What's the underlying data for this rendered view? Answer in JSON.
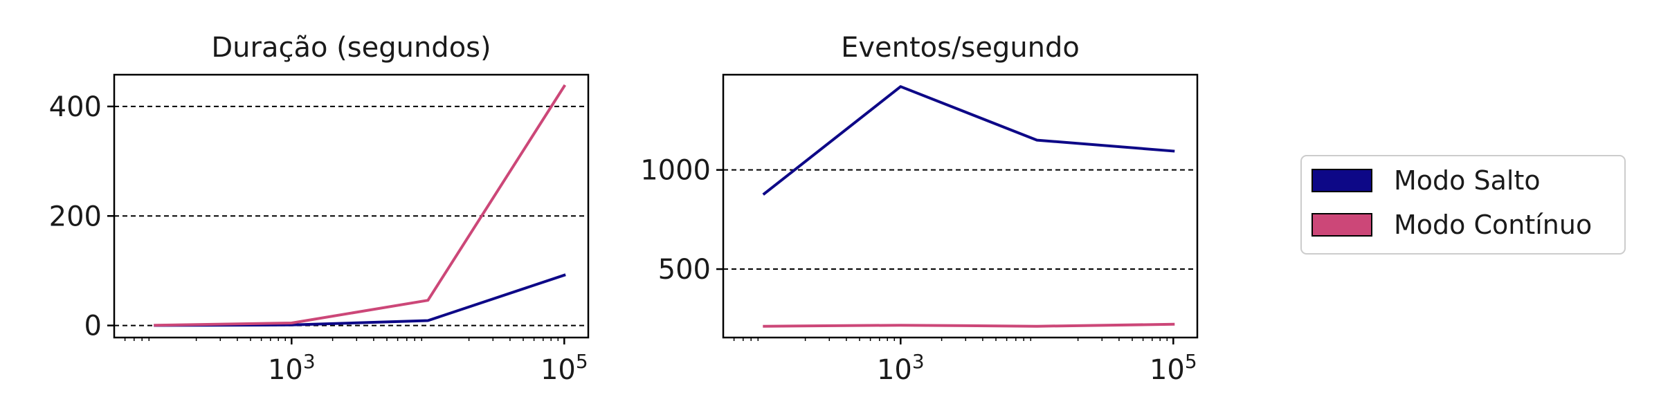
{
  "chart_data": [
    {
      "type": "line",
      "title": "Duração (segundos)",
      "xlabel": "",
      "ylabel": "",
      "x_scale": "log",
      "x": [
        100,
        1000,
        10000,
        100000
      ],
      "xlim": [
        50,
        150000
      ],
      "ylim": [
        -22,
        458
      ],
      "xticks": [
        1000,
        100000
      ],
      "xtick_labels": [
        {
          "base": "10",
          "exp": "3"
        },
        {
          "base": "10",
          "exp": "5"
        }
      ],
      "yticks": [
        0,
        200,
        400
      ],
      "ytick_labels": [
        "0",
        "200",
        "400"
      ],
      "grid": "horizontal-dashed",
      "series": [
        {
          "name": "Modo Salto",
          "color": "#0d0887",
          "values": [
            0.1,
            1,
            9,
            92
          ]
        },
        {
          "name": "Modo Contínuo",
          "color": "#cc4778",
          "values": [
            0.5,
            4.5,
            46,
            437
          ]
        }
      ]
    },
    {
      "type": "line",
      "title": "Eventos/segundo",
      "xlabel": "",
      "ylabel": "",
      "x_scale": "log",
      "x": [
        100,
        1000,
        10000,
        100000
      ],
      "xlim": [
        50,
        150000
      ],
      "ylim": [
        155,
        1480
      ],
      "xticks": [
        1000,
        100000
      ],
      "xtick_labels": [
        {
          "base": "10",
          "exp": "3"
        },
        {
          "base": "10",
          "exp": "5"
        }
      ],
      "yticks": [
        500,
        1000
      ],
      "ytick_labels": [
        "500",
        "1000"
      ],
      "grid": "horizontal-dashed",
      "series": [
        {
          "name": "Modo Salto",
          "color": "#0d0887",
          "values": [
            880,
            1420,
            1150,
            1095
          ]
        },
        {
          "name": "Modo Contínuo",
          "color": "#cc4778",
          "values": [
            212,
            217,
            212,
            222
          ]
        }
      ]
    }
  ],
  "legend": {
    "placement": "right",
    "items": [
      {
        "label": "Modo Salto",
        "color": "#0d0887"
      },
      {
        "label": "Modo Contínuo",
        "color": "#cc4778"
      }
    ]
  }
}
